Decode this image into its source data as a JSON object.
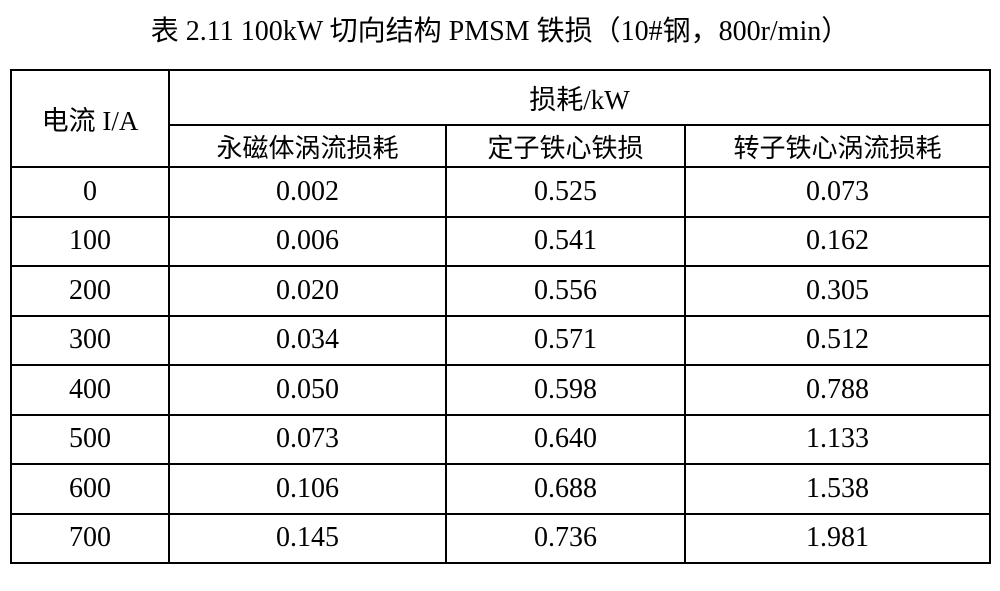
{
  "title": "表 2.11 100kW 切向结构 PMSM 铁损（10#钢，800r/min）",
  "table": {
    "corner_header": "电流 I/A",
    "group_header": "损耗/kW",
    "sub_headers": [
      "永磁体涡流损耗",
      "定子铁心铁损",
      "转子铁心涡流损耗"
    ],
    "rows": [
      {
        "current": "0",
        "values": [
          "0.002",
          "0.525",
          "0.073"
        ]
      },
      {
        "current": "100",
        "values": [
          "0.006",
          "0.541",
          "0.162"
        ]
      },
      {
        "current": "200",
        "values": [
          "0.020",
          "0.556",
          "0.305"
        ]
      },
      {
        "current": "300",
        "values": [
          "0.034",
          "0.571",
          "0.512"
        ]
      },
      {
        "current": "400",
        "values": [
          "0.050",
          "0.598",
          "0.788"
        ]
      },
      {
        "current": "500",
        "values": [
          "0.073",
          "0.640",
          "1.133"
        ]
      },
      {
        "current": "600",
        "values": [
          "0.106",
          "0.688",
          "1.538"
        ]
      },
      {
        "current": "700",
        "values": [
          "0.145",
          "0.736",
          "1.981"
        ]
      }
    ]
  }
}
